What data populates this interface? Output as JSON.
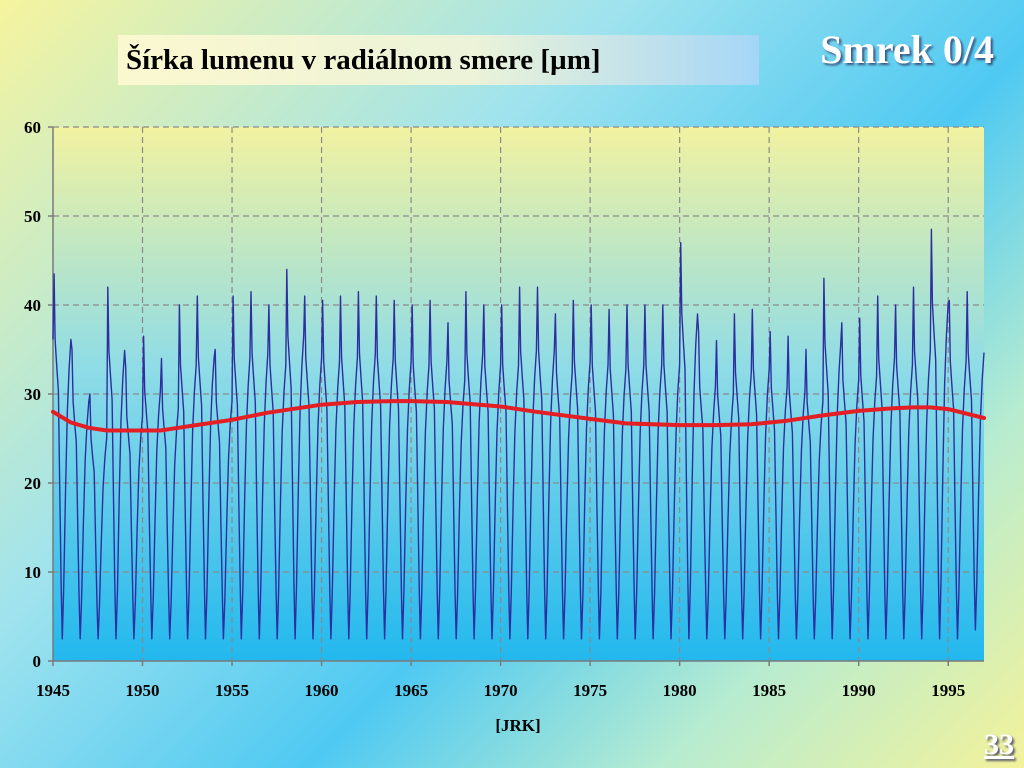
{
  "slide": {
    "heading": "Smrek 0/4",
    "page_number": "33"
  },
  "colors": {
    "raw_series": "#2b2fa0",
    "trend_series": "#e31e24",
    "plot_bg_top": "#f2f2a0",
    "plot_bg_bottom": "#22b8ee"
  },
  "chart_data": {
    "type": "line",
    "title": "Šírka lumenu v radiálnom smere [µm]",
    "xlabel": "[JRK]",
    "ylabel": "",
    "xlim": [
      1945,
      1997
    ],
    "ylim": [
      0,
      60
    ],
    "xticks": [
      1945,
      1950,
      1955,
      1960,
      1965,
      1970,
      1975,
      1980,
      1985,
      1990,
      1995
    ],
    "yticks": [
      0,
      10,
      20,
      30,
      40,
      50,
      60
    ],
    "grid": true,
    "series": [
      {
        "role": "annual-raw",
        "style": "thin-line",
        "years": [
          1945,
          1946,
          1947,
          1948,
          1949,
          1950,
          1951,
          1952,
          1953,
          1954,
          1955,
          1956,
          1957,
          1958,
          1959,
          1960,
          1961,
          1962,
          1963,
          1964,
          1965,
          1966,
          1967,
          1968,
          1969,
          1970,
          1971,
          1972,
          1973,
          1974,
          1975,
          1976,
          1977,
          1978,
          1979,
          1980,
          1981,
          1982,
          1983,
          1984,
          1985,
          1986,
          1987,
          1988,
          1989,
          1990,
          1991,
          1992,
          1993,
          1994,
          1995,
          1996
        ],
        "annual_max": [
          43.5,
          35,
          30,
          42,
          33,
          36.5,
          34,
          40,
          41,
          35,
          41,
          41.5,
          40,
          44,
          41,
          40.5,
          41,
          41.5,
          41,
          40.5,
          40,
          40.5,
          38,
          41.5,
          40,
          40,
          42,
          42,
          39,
          40.5,
          40,
          39.5,
          40,
          40,
          40,
          47,
          37,
          36,
          39,
          39.5,
          37,
          36.5,
          35,
          43,
          38,
          38.5,
          41,
          40,
          42,
          48.5,
          40.5,
          41.5
        ],
        "annual_min": [
          2.5,
          2.5,
          2.5,
          2.5,
          2.5,
          2.5,
          2.5,
          2.5,
          2.5,
          2.5,
          2.5,
          2.5,
          2.5,
          2.5,
          2.5,
          2.5,
          2.5,
          2.5,
          2.5,
          2.5,
          2.5,
          2.5,
          2.5,
          2.5,
          2.5,
          2.5,
          2.5,
          2.5,
          2.5,
          2.5,
          2.5,
          2.5,
          2.5,
          2.5,
          2.5,
          2.5,
          2.5,
          2.5,
          2.5,
          2.5,
          2.5,
          2.5,
          2.5,
          2.5,
          2.5,
          2.5,
          2.5,
          2.5,
          2.5,
          2.5,
          2.5,
          3.5
        ]
      },
      {
        "role": "trend",
        "style": "thick-line",
        "x": [
          1945,
          1946,
          1947,
          1948,
          1950,
          1951,
          1952,
          1953,
          1955,
          1957,
          1960,
          1962,
          1964,
          1965,
          1967,
          1970,
          1972,
          1975,
          1977,
          1980,
          1982,
          1984,
          1986,
          1988,
          1990,
          1992,
          1993,
          1994,
          1995,
          1996,
          1997
        ],
        "y": [
          28,
          26.8,
          26.2,
          25.9,
          25.9,
          25.9,
          26.2,
          26.5,
          27.1,
          27.9,
          28.8,
          29.1,
          29.2,
          29.2,
          29.1,
          28.6,
          28,
          27.2,
          26.7,
          26.5,
          26.5,
          26.6,
          27,
          27.6,
          28.1,
          28.4,
          28.5,
          28.5,
          28.3,
          27.8,
          27.3
        ]
      }
    ]
  }
}
